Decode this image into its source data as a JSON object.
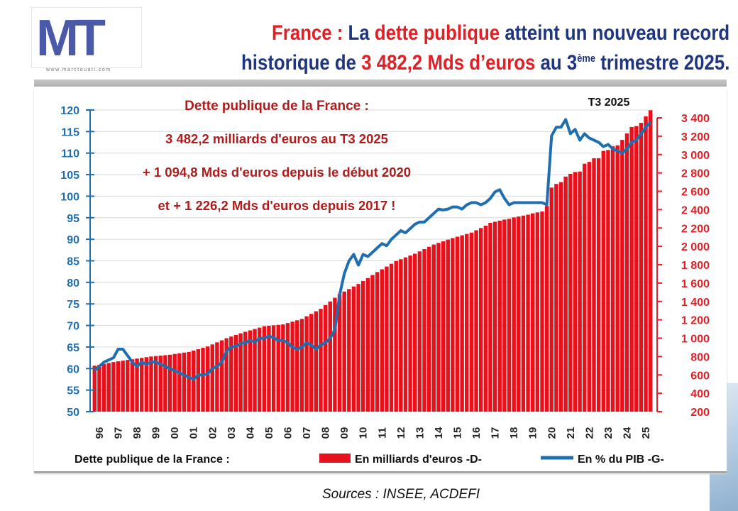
{
  "logo": {
    "text": "MT",
    "url": "www.marctouati.com"
  },
  "title": {
    "line1": [
      "France : ",
      "La ",
      "dette publique",
      " atteint un nouveau record"
    ],
    "line2": [
      "historique de ",
      "3 482,2 Mds d’euros",
      " au 3",
      "ème",
      " trimestre 2025."
    ]
  },
  "source": "Sources : INSEE, ACDEFI",
  "colors": {
    "bars": "#e8101a",
    "line": "#1f6fb0",
    "left_axis": "#1f6fb0",
    "right_axis": "#e31e24",
    "annot": "#b01c1c"
  },
  "chart_data": {
    "type": "bar+line",
    "annotations": [
      "Dette publique de la France :",
      "3 482,2 milliards d'euros au T3 2025",
      "+ 1 094,8 Mds d'euros depuis le début 2020",
      "et + 1 226,2 Mds d'euros depuis 2017 !"
    ],
    "last_label": "T3 2025",
    "legend": {
      "title": "Dette publique de la France :",
      "bars": "En milliards d'euros -D-",
      "line": "En % du PIB -G-",
      "position": "bottom"
    },
    "x_tick_labels": [
      "96",
      "97",
      "98",
      "99",
      "00",
      "01",
      "02",
      "03",
      "04",
      "05",
      "06",
      "07",
      "08",
      "09",
      "10",
      "11",
      "12",
      "13",
      "14",
      "15",
      "16",
      "17",
      "18",
      "19",
      "20",
      "21",
      "22",
      "23",
      "24",
      "25"
    ],
    "frequency": "quarterly, 1996 Q1 – 2025 Q3",
    "left_axis": {
      "ylim": [
        50,
        120
      ],
      "ticks": [
        50,
        55,
        60,
        65,
        70,
        75,
        80,
        85,
        90,
        95,
        100,
        105,
        110,
        115,
        120
      ]
    },
    "right_axis": {
      "ylim": [
        200,
        3400
      ],
      "ticks": [
        "200",
        "400",
        "600",
        "800",
        "1 000",
        "1 200",
        "1 400",
        "1 600",
        "1 800",
        "2 000",
        "2 200",
        "2 400",
        "2 600",
        "2 800",
        "3 000",
        "3 200",
        "3 400"
      ]
    },
    "grid": true,
    "series": [
      {
        "name": "En milliards d'euros -D-",
        "type": "bar",
        "axis": "right",
        "values": [
          700,
          710,
          720,
          730,
          740,
          748,
          755,
          763,
          770,
          778,
          785,
          793,
          800,
          805,
          810,
          815,
          820,
          828,
          835,
          843,
          850,
          865,
          880,
          895,
          910,
          932,
          955,
          977,
          1000,
          1018,
          1035,
          1053,
          1070,
          1085,
          1100,
          1115,
          1130,
          1135,
          1140,
          1145,
          1150,
          1165,
          1180,
          1195,
          1210,
          1238,
          1265,
          1293,
          1320,
          1360,
          1400,
          1440,
          1480,
          1508,
          1535,
          1563,
          1590,
          1623,
          1655,
          1688,
          1720,
          1750,
          1780,
          1810,
          1840,
          1860,
          1880,
          1900,
          1920,
          1945,
          1970,
          1995,
          2020,
          2038,
          2055,
          2073,
          2090,
          2105,
          2120,
          2135,
          2150,
          2175,
          2200,
          2225,
          2256,
          2268,
          2280,
          2292,
          2300,
          2315,
          2325,
          2335,
          2345,
          2360,
          2370,
          2380,
          2440,
          2640,
          2680,
          2700,
          2760,
          2790,
          2810,
          2815,
          2900,
          2920,
          2960,
          2960,
          3040,
          3050,
          3090,
          3100,
          3160,
          3230,
          3300,
          3310,
          3345,
          3416,
          3482.2
        ]
      },
      {
        "name": "En % du PIB -G-",
        "type": "line",
        "axis": "left",
        "values": [
          59.5,
          60.5,
          61.5,
          62,
          62.5,
          64.5,
          64.5,
          63,
          61.5,
          60.5,
          61.5,
          61,
          61.5,
          61.5,
          61,
          60.5,
          60,
          59.5,
          59,
          58.5,
          58,
          57.5,
          58.5,
          58.5,
          58.8,
          60,
          60.5,
          61.5,
          64,
          65,
          65.2,
          65.8,
          66,
          66.5,
          66.2,
          67,
          67,
          67.5,
          67.2,
          66.5,
          66.5,
          66,
          65,
          64.5,
          65,
          66,
          65.5,
          64.5,
          65.5,
          66,
          67,
          69,
          77,
          82,
          85,
          86.5,
          84,
          86.5,
          86,
          87,
          88,
          89,
          88.5,
          90,
          91,
          92,
          91.5,
          92.5,
          93.5,
          94,
          94,
          95,
          96,
          97,
          96.8,
          97,
          97.5,
          97.5,
          97,
          98,
          98.5,
          98.5,
          98,
          98.5,
          99.5,
          101,
          101.5,
          99.5,
          98,
          98.5,
          98.5,
          98.5,
          98.5,
          98.5,
          98.5,
          98.5,
          98,
          114,
          116,
          116,
          117.8,
          114.5,
          115.5,
          113,
          114.5,
          113.5,
          113,
          112.5,
          111.5,
          112,
          111,
          110.5,
          110,
          111,
          112.5,
          113,
          114.5,
          116,
          117.2
        ]
      }
    ]
  }
}
